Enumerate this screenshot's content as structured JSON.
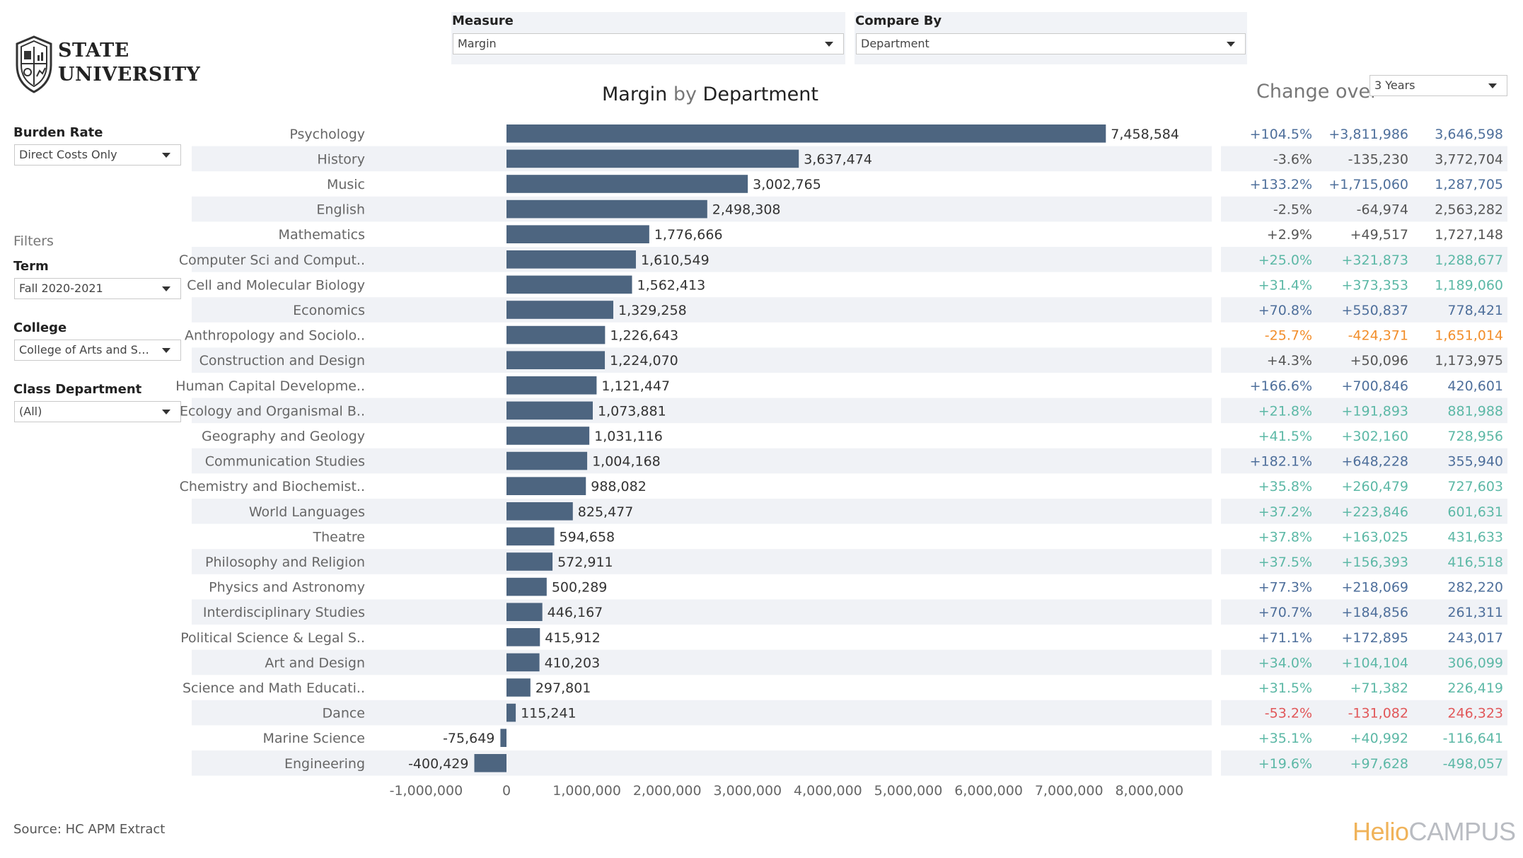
{
  "logo": {
    "line1": "STATE",
    "line2": "UNIVERSITY"
  },
  "sidebar": {
    "burden_rate": {
      "label": "Burden Rate",
      "value": "Direct Costs Only"
    },
    "filters_heading": "Filters",
    "term": {
      "label": "Term",
      "value": "Fall 2020-2021"
    },
    "college": {
      "label": "College",
      "value": "College of Arts and Sci..."
    },
    "class_department": {
      "label": "Class Department",
      "value": "(All)"
    }
  },
  "parameters": {
    "measure": {
      "label": "Measure",
      "value": "Margin"
    },
    "compare_by": {
      "label": "Compare By",
      "value": "Department"
    }
  },
  "title": {
    "measure": "Margin",
    "by": "by",
    "dimension": "Department"
  },
  "change_over": {
    "label": "Change over",
    "value": "3 Years"
  },
  "source": "Source: HC APM Extract",
  "brand": {
    "part1": "Helio",
    "part2": "CAMPUS"
  },
  "colors": {
    "bar": "#4d6580",
    "band": "#f0f2f6",
    "dark_blue": "#4e6f9b",
    "gray": "#555555",
    "teal": "#5cb8a6",
    "orange": "#f28e2b",
    "red": "#e15759"
  },
  "chart_data": {
    "type": "bar",
    "orientation": "horizontal",
    "xlim": [
      -1000000,
      8000000
    ],
    "x_ticks": [
      "-1,000,000",
      "0",
      "1,000,000",
      "2,000,000",
      "3,000,000",
      "4,000,000",
      "5,000,000",
      "6,000,000",
      "7,000,000",
      "8,000,000"
    ],
    "x_tick_values": [
      -1000000,
      0,
      1000000,
      2000000,
      3000000,
      4000000,
      5000000,
      6000000,
      7000000,
      8000000
    ],
    "rows": [
      {
        "label": "Psychology",
        "value": 7458584,
        "value_label": "7,458,584",
        "pct": "+104.5%",
        "chg": "+3,811,986",
        "prior": "3,646,598",
        "color": "dark_blue"
      },
      {
        "label": "History",
        "value": 3637474,
        "value_label": "3,637,474",
        "pct": "-3.6%",
        "chg": "-135,230",
        "prior": "3,772,704",
        "color": "gray"
      },
      {
        "label": "Music",
        "value": 3002765,
        "value_label": "3,002,765",
        "pct": "+133.2%",
        "chg": "+1,715,060",
        "prior": "1,287,705",
        "color": "dark_blue"
      },
      {
        "label": "English",
        "value": 2498308,
        "value_label": "2,498,308",
        "pct": "-2.5%",
        "chg": "-64,974",
        "prior": "2,563,282",
        "color": "gray"
      },
      {
        "label": "Mathematics",
        "value": 1776666,
        "value_label": "1,776,666",
        "pct": "+2.9%",
        "chg": "+49,517",
        "prior": "1,727,148",
        "color": "gray"
      },
      {
        "label": "Computer Sci and Comput..",
        "value": 1610549,
        "value_label": "1,610,549",
        "pct": "+25.0%",
        "chg": "+321,873",
        "prior": "1,288,677",
        "color": "teal"
      },
      {
        "label": "Cell and Molecular Biology",
        "value": 1562413,
        "value_label": "1,562,413",
        "pct": "+31.4%",
        "chg": "+373,353",
        "prior": "1,189,060",
        "color": "teal"
      },
      {
        "label": "Economics",
        "value": 1329258,
        "value_label": "1,329,258",
        "pct": "+70.8%",
        "chg": "+550,837",
        "prior": "778,421",
        "color": "dark_blue"
      },
      {
        "label": "Anthropology and Sociolo..",
        "value": 1226643,
        "value_label": "1,226,643",
        "pct": "-25.7%",
        "chg": "-424,371",
        "prior": "1,651,014",
        "color": "orange"
      },
      {
        "label": "Construction and Design",
        "value": 1224070,
        "value_label": "1,224,070",
        "pct": "+4.3%",
        "chg": "+50,096",
        "prior": "1,173,975",
        "color": "gray"
      },
      {
        "label": "Human Capital Developme..",
        "value": 1121447,
        "value_label": "1,121,447",
        "pct": "+166.6%",
        "chg": "+700,846",
        "prior": "420,601",
        "color": "dark_blue"
      },
      {
        "label": "Ecology and Organismal B..",
        "value": 1073881,
        "value_label": "1,073,881",
        "pct": "+21.8%",
        "chg": "+191,893",
        "prior": "881,988",
        "color": "teal"
      },
      {
        "label": "Geography and Geology",
        "value": 1031116,
        "value_label": "1,031,116",
        "pct": "+41.5%",
        "chg": "+302,160",
        "prior": "728,956",
        "color": "teal"
      },
      {
        "label": "Communication Studies",
        "value": 1004168,
        "value_label": "1,004,168",
        "pct": "+182.1%",
        "chg": "+648,228",
        "prior": "355,940",
        "color": "dark_blue"
      },
      {
        "label": "Chemistry and Biochemist..",
        "value": 988082,
        "value_label": "988,082",
        "pct": "+35.8%",
        "chg": "+260,479",
        "prior": "727,603",
        "color": "teal"
      },
      {
        "label": "World Languages",
        "value": 825477,
        "value_label": "825,477",
        "pct": "+37.2%",
        "chg": "+223,846",
        "prior": "601,631",
        "color": "teal"
      },
      {
        "label": "Theatre",
        "value": 594658,
        "value_label": "594,658",
        "pct": "+37.8%",
        "chg": "+163,025",
        "prior": "431,633",
        "color": "teal"
      },
      {
        "label": "Philosophy and Religion",
        "value": 572911,
        "value_label": "572,911",
        "pct": "+37.5%",
        "chg": "+156,393",
        "prior": "416,518",
        "color": "teal"
      },
      {
        "label": "Physics and Astronomy",
        "value": 500289,
        "value_label": "500,289",
        "pct": "+77.3%",
        "chg": "+218,069",
        "prior": "282,220",
        "color": "dark_blue"
      },
      {
        "label": "Interdisciplinary Studies",
        "value": 446167,
        "value_label": "446,167",
        "pct": "+70.7%",
        "chg": "+184,856",
        "prior": "261,311",
        "color": "dark_blue"
      },
      {
        "label": "Political Science & Legal S..",
        "value": 415912,
        "value_label": "415,912",
        "pct": "+71.1%",
        "chg": "+172,895",
        "prior": "243,017",
        "color": "dark_blue"
      },
      {
        "label": "Art and Design",
        "value": 410203,
        "value_label": "410,203",
        "pct": "+34.0%",
        "chg": "+104,104",
        "prior": "306,099",
        "color": "teal"
      },
      {
        "label": "Science and Math Educati..",
        "value": 297801,
        "value_label": "297,801",
        "pct": "+31.5%",
        "chg": "+71,382",
        "prior": "226,419",
        "color": "teal"
      },
      {
        "label": "Dance",
        "value": 115241,
        "value_label": "115,241",
        "pct": "-53.2%",
        "chg": "-131,082",
        "prior": "246,323",
        "color": "red"
      },
      {
        "label": "Marine Science",
        "value": -75649,
        "value_label": "-75,649",
        "pct": "+35.1%",
        "chg": "+40,992",
        "prior": "-116,641",
        "color": "teal"
      },
      {
        "label": "Engineering",
        "value": -400429,
        "value_label": "-400,429",
        "pct": "+19.6%",
        "chg": "+97,628",
        "prior": "-498,057",
        "color": "teal"
      }
    ]
  }
}
